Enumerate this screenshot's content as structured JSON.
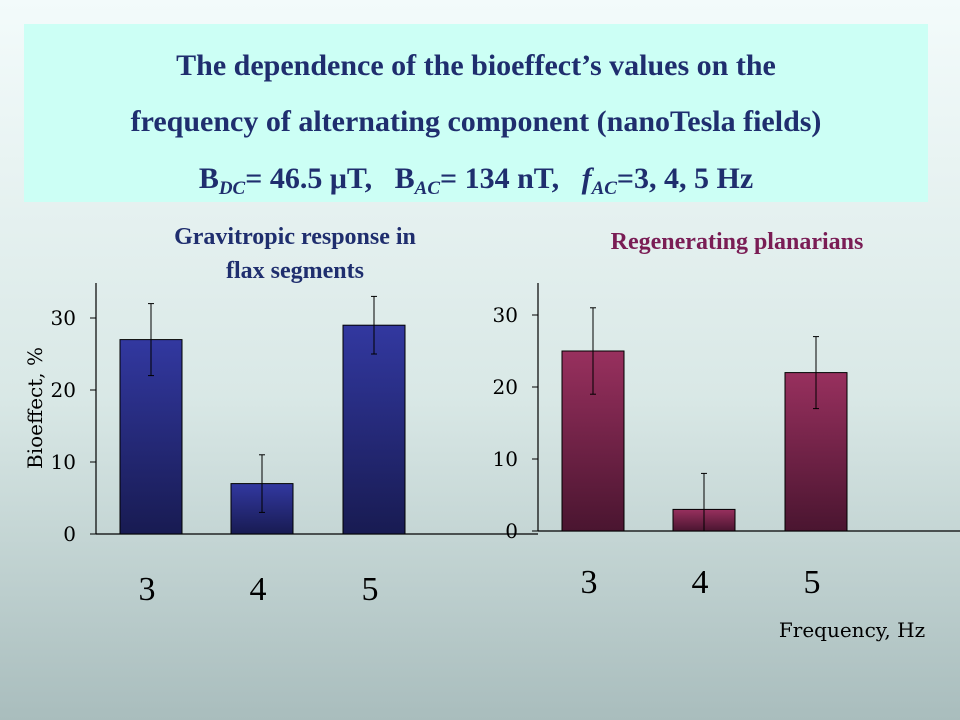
{
  "title": {
    "line1": "The dependence of the bioeffect’s values on the",
    "line2": "frequency of alternating component (nanoTesla fields)",
    "b_letter": "B",
    "dc_sub": "DC",
    "dc_value": "= 46.5 μT,",
    "ac_sub": "AC",
    "ac_value": "= 134 nT,",
    "f_letter": "f",
    "f_value": "=3, 4, 5 Hz"
  },
  "colors": {
    "flax": "#2e3592",
    "planarian": "#8d2e57",
    "flax_title": "#1f2e6e",
    "planarian_title": "#7a1d55"
  },
  "chart_data": [
    {
      "type": "bar",
      "title": "Gravitropic response in flax segments",
      "title_lines": [
        "Gravitropic response in",
        "flax segments"
      ],
      "categories": [
        "3",
        "4",
        "5"
      ],
      "values": [
        27,
        7,
        29
      ],
      "error": [
        5,
        4,
        4
      ],
      "ylabel": "Bioeffect, %",
      "xlabel": "",
      "yticks": [
        "0",
        "10",
        "20",
        "30"
      ],
      "ylim": [
        0,
        35
      ]
    },
    {
      "type": "bar",
      "title": "Regenerating planarians",
      "categories": [
        "3",
        "4",
        "5"
      ],
      "values": [
        25,
        3,
        22
      ],
      "error": [
        6,
        5,
        5
      ],
      "ylabel": "",
      "xlabel": "Frequency, Hz",
      "yticks": [
        "0",
        "10",
        "20",
        "30"
      ],
      "ylim": [
        0,
        35
      ]
    }
  ]
}
